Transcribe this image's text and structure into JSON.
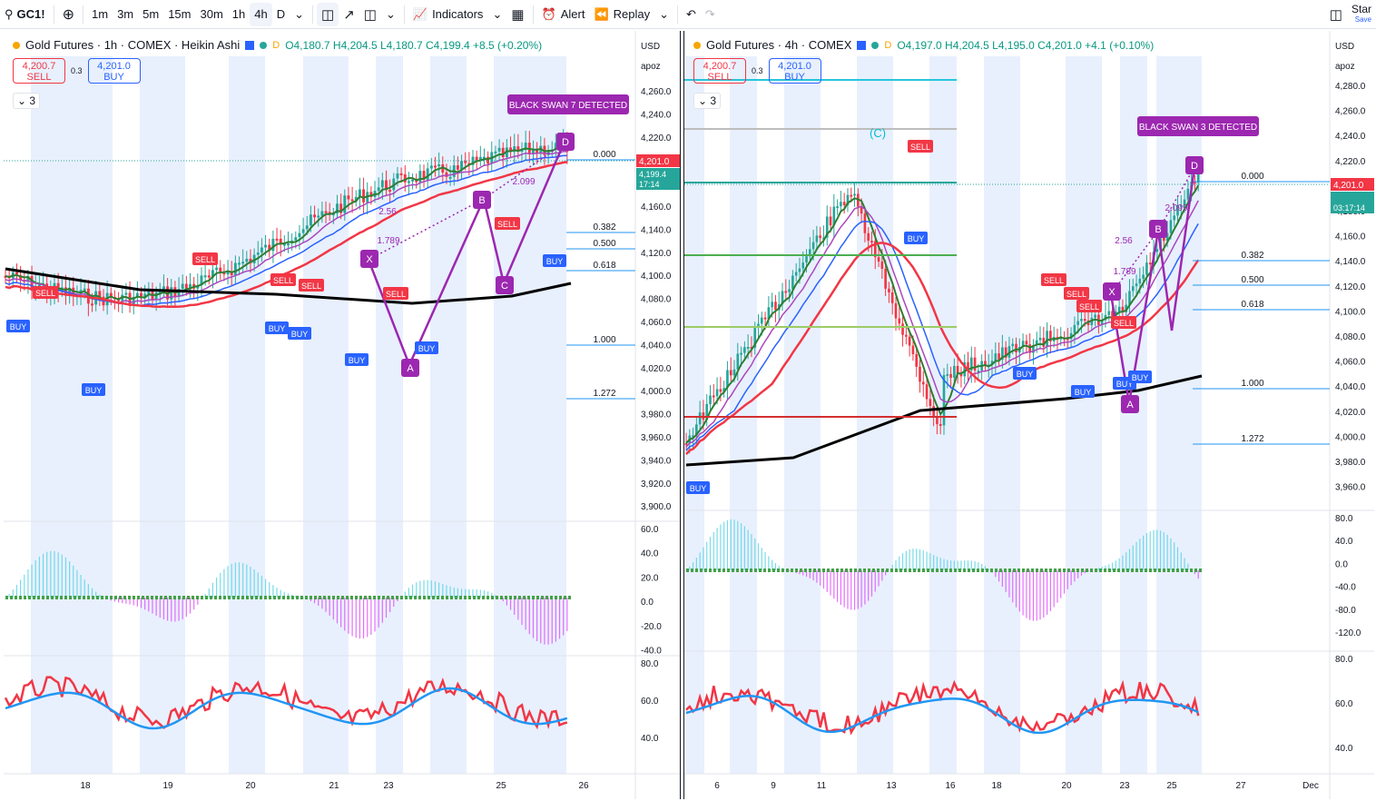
{
  "toolbar": {
    "symbol": "GC1!",
    "intervals": [
      "1m",
      "3m",
      "5m",
      "15m",
      "30m",
      "1h",
      "4h",
      "D"
    ],
    "active_interval": "4h",
    "indicators_label": "Indicators",
    "alert_label": "Alert",
    "replay_label": "Replay",
    "right_label": "Star",
    "right_sub": "Save"
  },
  "left": {
    "title": "Gold Futures · 1h · COMEX · Heikin Ashi",
    "ohlc": "O4,180.7 H4,204.5 L4,180.7 C4,199.4 +8.5 (+0.20%)",
    "sell_price": "4,200.7",
    "sell_label": "SELL",
    "spread": "0.3",
    "buy_price": "4,201.0",
    "buy_label": "BUY",
    "collapse": "3",
    "currency": "USD",
    "scale_mode": "apoz",
    "price_ticks": [
      "4,260.0",
      "4,240.0",
      "4,220.0",
      "4,180.0",
      "4,160.0",
      "4,140.0",
      "4,120.0",
      "4,100.0",
      "4,080.0",
      "4,060.0",
      "4,040.0",
      "4,020.0",
      "4,000.0",
      "3,980.0",
      "3,960.0",
      "3,940.0",
      "3,920.0",
      "3,900.0"
    ],
    "last_price": "4,201.0",
    "last_price2": "4,199.4",
    "countdown": "17:14",
    "fib": [
      "0.000",
      "0.382",
      "0.500",
      "0.618",
      "1.000",
      "1.272"
    ],
    "banner": "BLACK SWAN 7 DETECTED",
    "pattern_points": [
      "X",
      "A",
      "B",
      "C",
      "D"
    ],
    "ratios": [
      "2.56",
      "1.789",
      "2.099"
    ],
    "signals_sell": [
      "SELL",
      "SELL",
      "SELL",
      "SELL",
      "SELL",
      "SELL"
    ],
    "signals_buy": [
      "BUY",
      "BUY",
      "BUY",
      "BUY",
      "BUY",
      "BUY",
      "BUY"
    ],
    "osc_ticks": [
      "60.0",
      "40.0",
      "20.0",
      "0.0",
      "-20.0",
      "-40.0"
    ],
    "rsi_ticks": [
      "80.0",
      "60.0",
      "40.0"
    ],
    "x_ticks": [
      "18",
      "19",
      "20",
      "21",
      "23",
      "25",
      "26"
    ]
  },
  "right": {
    "title": "Gold Futures · 4h · COMEX",
    "ohlc": "O4,197.0 H4,204.5 L4,195.0 C4,201.0 +4.1 (+0.10%)",
    "sell_price": "4,200.7",
    "sell_label": "SELL",
    "spread": "0.3",
    "buy_price": "4,201.0",
    "buy_label": "BUY",
    "collapse": "3",
    "currency": "USD",
    "scale_mode": "apoz",
    "price_ticks": [
      "4,280.0",
      "4,260.0",
      "4,240.0",
      "4,220.0",
      "4,180.0",
      "4,160.0",
      "4,140.0",
      "4,120.0",
      "4,100.0",
      "4,080.0",
      "4,060.0",
      "4,040.0",
      "4,020.0",
      "4,000.0",
      "3,980.0",
      "3,960.0"
    ],
    "last_price": "4,201.0",
    "countdown": "03:17:14",
    "fib": [
      "0.000",
      "0.382",
      "0.500",
      "0.618",
      "1.000",
      "1.272"
    ],
    "banner": "BLACK SWAN 3 DETECTED",
    "pattern_points": [
      "X",
      "A",
      "B",
      "D"
    ],
    "ratios": [
      "2.56",
      "1.789",
      "2.099"
    ],
    "wave_label": "(C)",
    "osc_ticks": [
      "80.0",
      "40.0",
      "0.0",
      "-40.0",
      "-80.0",
      "-120.0"
    ],
    "rsi_ticks": [
      "80.0",
      "60.0",
      "40.0"
    ],
    "x_ticks": [
      "6",
      "9",
      "11",
      "13",
      "16",
      "18",
      "20",
      "23",
      "25",
      "27",
      "Dec"
    ]
  },
  "colors": {
    "bull": "#26a69a",
    "bear": "#f23645",
    "pattern": "#9c27b0",
    "ma_black": "#000000",
    "ma_red": "#f23645",
    "ma_blue": "#2962ff",
    "fib": "#2196f3",
    "session_shade": "#e8f0fe"
  }
}
